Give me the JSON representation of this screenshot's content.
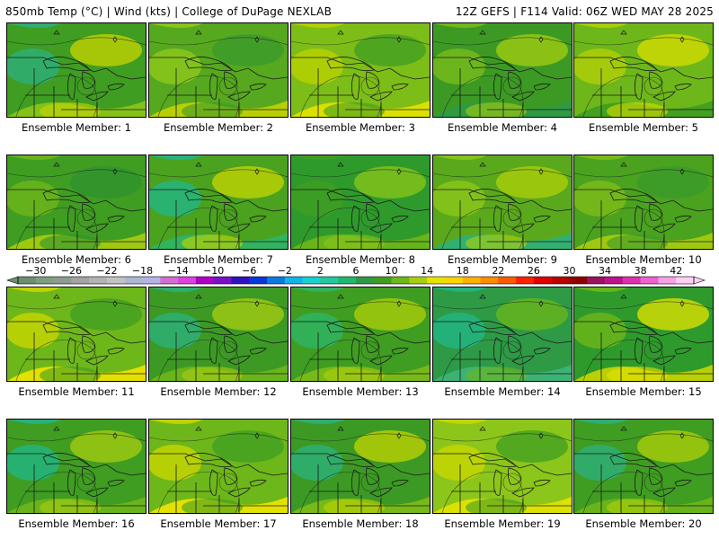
{
  "header": {
    "left_title": "850mb Temp (°C) | Wind (kts) | College of DuPage NEXLAB",
    "right_title": "12Z GEFS | F114 Valid: 06Z WED MAY 28 2025"
  },
  "panels": [
    {
      "label": "Ensemble Member: 1",
      "base": "#3f9d22",
      "accents": [
        "#2db07a",
        "#8cc61a",
        "#c8d600"
      ]
    },
    {
      "label": "Ensemble Member: 2",
      "base": "#56a81e",
      "accents": [
        "#8ec81a",
        "#c3d300",
        "#3a9a2c"
      ]
    },
    {
      "label": "Ensemble Member: 3",
      "base": "#7dbd18",
      "accents": [
        "#b9d200",
        "#e6e300",
        "#3f9d22"
      ]
    },
    {
      "label": "Ensemble Member: 4",
      "base": "#3c9a24",
      "accents": [
        "#78bb1b",
        "#2e9a46",
        "#a6cd10"
      ]
    },
    {
      "label": "Ensemble Member: 5",
      "base": "#6eb71a",
      "accents": [
        "#b0d008",
        "#3f9d22",
        "#d9de00"
      ]
    },
    {
      "label": "Ensemble Member: 6",
      "base": "#3f9d22",
      "accents": [
        "#6eb71a",
        "#a8cd10",
        "#2f9330"
      ]
    },
    {
      "label": "Ensemble Member: 7",
      "base": "#4aa21f",
      "accents": [
        "#22b685",
        "#2fb566",
        "#c8d600"
      ]
    },
    {
      "label": "Ensemble Member: 8",
      "base": "#2f9a2c",
      "accents": [
        "#3f9d22",
        "#6eb71a",
        "#8cc61a"
      ]
    },
    {
      "label": "Ensemble Member: 9",
      "base": "#5aa91d",
      "accents": [
        "#8cc61a",
        "#2db07a",
        "#b0d008"
      ]
    },
    {
      "label": "Ensemble Member: 10",
      "base": "#4aa21f",
      "accents": [
        "#7dbd18",
        "#a8cd10",
        "#3a9a2c"
      ]
    },
    {
      "label": "Ensemble Member: 11",
      "base": "#6eb71a",
      "accents": [
        "#c8d600",
        "#f0e400",
        "#3f9d22"
      ]
    },
    {
      "label": "Ensemble Member: 12",
      "base": "#3c9a24",
      "accents": [
        "#2db07a",
        "#6eb71a",
        "#a8cd10"
      ]
    },
    {
      "label": "Ensemble Member: 13",
      "base": "#3f9d22",
      "accents": [
        "#2fb566",
        "#7dbd18",
        "#b0d008"
      ]
    },
    {
      "label": "Ensemble Member: 14",
      "base": "#2e9a46",
      "accents": [
        "#22b685",
        "#3fb57a",
        "#6eb71a"
      ]
    },
    {
      "label": "Ensemble Member: 15",
      "base": "#2f9a2c",
      "accents": [
        "#6eb71a",
        "#c8d600",
        "#e6e300"
      ]
    },
    {
      "label": "Ensemble Member: 16",
      "base": "#3f9d22",
      "accents": [
        "#22b685",
        "#6eb71a",
        "#a8cd10"
      ]
    },
    {
      "label": "Ensemble Member: 17",
      "base": "#6eb71a",
      "accents": [
        "#c8d600",
        "#f0e400",
        "#3f9d22"
      ]
    },
    {
      "label": "Ensemble Member: 18",
      "base": "#3c9a24",
      "accents": [
        "#2db07a",
        "#7dbd18",
        "#c3d300"
      ]
    },
    {
      "label": "Ensemble Member: 19",
      "base": "#8cc61a",
      "accents": [
        "#c8d600",
        "#e6e300",
        "#3f9d22"
      ]
    },
    {
      "label": "Ensemble Member: 20",
      "base": "#3f9d22",
      "accents": [
        "#2db07a",
        "#6eb71a",
        "#b0d008"
      ]
    }
  ],
  "colorbar": {
    "labels": [
      "−30",
      "−26",
      "−22",
      "−18",
      "−14",
      "−10",
      "−6",
      "−2",
      "2",
      "6",
      "10",
      "14",
      "18",
      "22",
      "26",
      "30",
      "34",
      "38",
      "42"
    ],
    "colors": [
      "#6e8e6e",
      "#7f9e7f",
      "#909b90",
      "#a3a3a3",
      "#b3b3b3",
      "#c2c2c2",
      "#aab8d2",
      "#b3b3e6",
      "#d26fd2",
      "#e040e0",
      "#b000c8",
      "#7a10c8",
      "#3010c0",
      "#0838d8",
      "#0a7ae0",
      "#10b4e8",
      "#18d0d0",
      "#22c8a0",
      "#20b870",
      "#2e9a46",
      "#3f9d22",
      "#6eb71a",
      "#a8cd10",
      "#e6e300",
      "#ffd400",
      "#ffb000",
      "#ff8c00",
      "#ff5a00",
      "#ff2000",
      "#e00000",
      "#b80000",
      "#900000",
      "#a01060",
      "#c01090",
      "#e030b0",
      "#f060d0",
      "#f8a0e8",
      "#ffd0f4"
    ]
  }
}
